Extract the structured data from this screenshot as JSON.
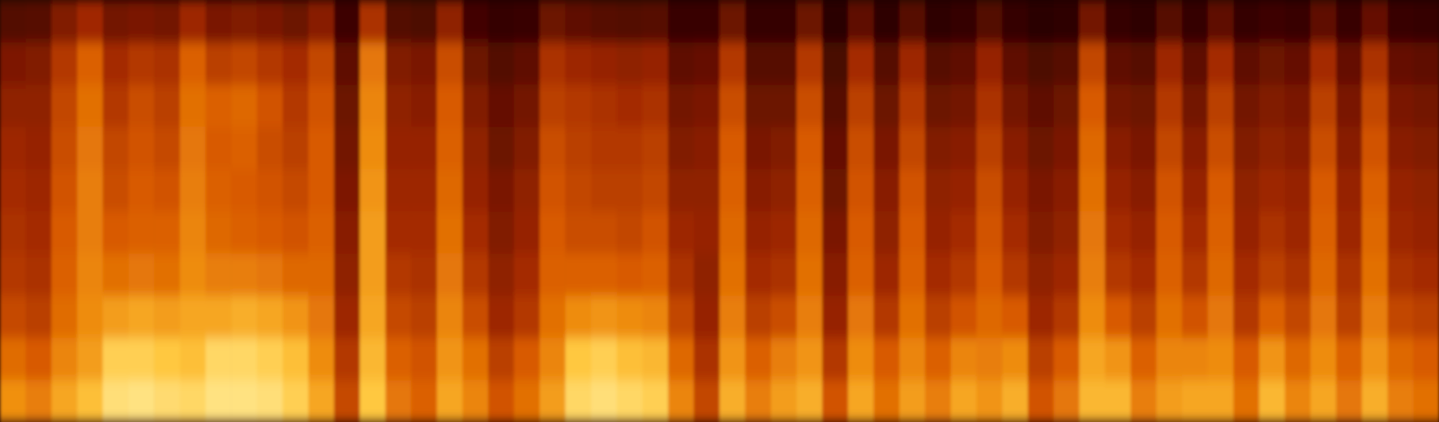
{
  "chart_data": {
    "type": "heatmap",
    "tick_labels": false,
    "grid": false,
    "zlim": [
      0,
      100
    ],
    "cells": [
      [
        75,
        65,
        55,
        50,
        48,
        46,
        44,
        40,
        35,
        22
      ],
      [
        70,
        60,
        52,
        48,
        46,
        44,
        42,
        40,
        36,
        24
      ],
      [
        80,
        72,
        65,
        62,
        60,
        58,
        56,
        54,
        50,
        36
      ],
      [
        86,
        78,
        74,
        72,
        70,
        70,
        68,
        66,
        62,
        45
      ],
      [
        94,
        90,
        78,
        66,
        60,
        56,
        54,
        50,
        46,
        32
      ],
      [
        95,
        90,
        80,
        68,
        62,
        60,
        58,
        56,
        50,
        34
      ],
      [
        93,
        88,
        78,
        66,
        62,
        58,
        55,
        52,
        48,
        32
      ],
      [
        92,
        86,
        80,
        74,
        72,
        70,
        68,
        66,
        62,
        44
      ],
      [
        95,
        92,
        80,
        70,
        64,
        62,
        60,
        62,
        52,
        34
      ],
      [
        95,
        92,
        82,
        70,
        62,
        60,
        62,
        64,
        54,
        36
      ],
      [
        94,
        90,
        80,
        68,
        60,
        58,
        56,
        58,
        50,
        34
      ],
      [
        90,
        86,
        76,
        64,
        58,
        55,
        52,
        50,
        46,
        30
      ],
      [
        80,
        74,
        68,
        64,
        62,
        60,
        60,
        58,
        54,
        38
      ],
      [
        55,
        50,
        44,
        40,
        38,
        35,
        32,
        30,
        26,
        14
      ],
      [
        88,
        84,
        80,
        78,
        78,
        76,
        74,
        72,
        68,
        48
      ],
      [
        68,
        62,
        55,
        50,
        46,
        44,
        42,
        40,
        36,
        22
      ],
      [
        62,
        58,
        52,
        48,
        46,
        44,
        42,
        38,
        34,
        20
      ],
      [
        80,
        76,
        72,
        68,
        66,
        64,
        62,
        60,
        56,
        40
      ],
      [
        72,
        66,
        56,
        50,
        46,
        42,
        40,
        36,
        30,
        16
      ],
      [
        58,
        52,
        44,
        40,
        36,
        34,
        30,
        28,
        22,
        10
      ],
      [
        66,
        60,
        50,
        46,
        42,
        40,
        36,
        32,
        26,
        12
      ],
      [
        78,
        72,
        66,
        62,
        60,
        58,
        56,
        52,
        48,
        30
      ],
      [
        92,
        88,
        74,
        62,
        56,
        54,
        52,
        50,
        44,
        26
      ],
      [
        94,
        90,
        76,
        62,
        56,
        52,
        50,
        48,
        42,
        24
      ],
      [
        92,
        86,
        74,
        60,
        54,
        52,
        50,
        46,
        40,
        22
      ],
      [
        90,
        84,
        72,
        62,
        58,
        54,
        52,
        48,
        42,
        24
      ],
      [
        72,
        64,
        54,
        48,
        44,
        40,
        36,
        32,
        26,
        12
      ],
      [
        54,
        48,
        42,
        40,
        42,
        40,
        38,
        34,
        28,
        12
      ],
      [
        82,
        76,
        70,
        66,
        64,
        62,
        60,
        56,
        50,
        30
      ],
      [
        70,
        62,
        52,
        46,
        42,
        38,
        34,
        30,
        24,
        10
      ],
      [
        78,
        70,
        56,
        48,
        44,
        40,
        36,
        30,
        24,
        10
      ],
      [
        82,
        76,
        70,
        66,
        64,
        62,
        60,
        56,
        50,
        30
      ],
      [
        58,
        50,
        42,
        38,
        34,
        30,
        28,
        24,
        18,
        6
      ],
      [
        80,
        74,
        68,
        62,
        60,
        58,
        56,
        52,
        46,
        26
      ],
      [
        66,
        60,
        50,
        44,
        40,
        38,
        34,
        30,
        24,
        8
      ],
      [
        78,
        72,
        66,
        62,
        60,
        58,
        54,
        50,
        44,
        24
      ],
      [
        70,
        62,
        52,
        46,
        42,
        40,
        36,
        30,
        24,
        8
      ],
      [
        80,
        72,
        58,
        50,
        46,
        42,
        38,
        32,
        26,
        10
      ],
      [
        76,
        70,
        64,
        60,
        58,
        56,
        52,
        48,
        42,
        22
      ],
      [
        82,
        74,
        60,
        50,
        46,
        42,
        38,
        32,
        26,
        10
      ],
      [
        58,
        52,
        44,
        40,
        36,
        34,
        30,
        26,
        20,
        6
      ],
      [
        68,
        60,
        50,
        44,
        40,
        38,
        34,
        30,
        24,
        8
      ],
      [
        84,
        80,
        74,
        70,
        68,
        66,
        64,
        60,
        54,
        32
      ],
      [
        84,
        76,
        60,
        50,
        46,
        42,
        38,
        32,
        26,
        10
      ],
      [
        70,
        62,
        52,
        46,
        42,
        38,
        34,
        30,
        24,
        8
      ],
      [
        78,
        72,
        66,
        62,
        60,
        58,
        54,
        50,
        44,
        24
      ],
      [
        80,
        72,
        58,
        50,
        46,
        42,
        38,
        32,
        26,
        10
      ],
      [
        80,
        74,
        68,
        64,
        62,
        60,
        56,
        52,
        46,
        26
      ],
      [
        66,
        60,
        50,
        46,
        42,
        40,
        36,
        32,
        26,
        10
      ],
      [
        84,
        76,
        62,
        52,
        48,
        44,
        40,
        36,
        30,
        14
      ],
      [
        72,
        64,
        54,
        48,
        44,
        42,
        38,
        34,
        28,
        12
      ],
      [
        80,
        74,
        68,
        64,
        62,
        60,
        56,
        52,
        46,
        26
      ],
      [
        68,
        62,
        52,
        48,
        44,
        42,
        38,
        34,
        28,
        12
      ],
      [
        82,
        76,
        70,
        66,
        64,
        62,
        58,
        54,
        48,
        28
      ],
      [
        70,
        64,
        54,
        48,
        44,
        42,
        38,
        34,
        28,
        12
      ],
      [
        66,
        60,
        52,
        46,
        42,
        40,
        36,
        32,
        26,
        10
      ]
    ]
  }
}
